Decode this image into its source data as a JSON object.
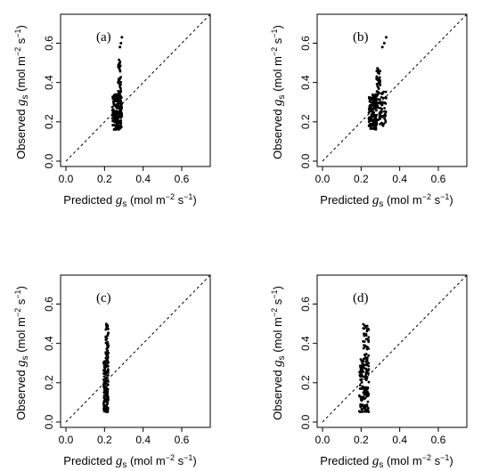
{
  "figure": {
    "xlabel": {
      "prefix": "Predicted ",
      "var": "g",
      "var_sub": "s",
      "unit_open": " (mol m",
      "sup1": "−2",
      "mid": " s",
      "sup2": "−1",
      "unit_close": ")"
    },
    "ylabel": {
      "prefix": "Observed ",
      "var": "g",
      "var_sub": "s",
      "unit_open": " (mol m",
      "sup1": "−2",
      "mid": " s",
      "sup2": "−1",
      "unit_close": ")"
    },
    "xticks": [
      "0.0",
      "0.2",
      "0.4",
      "0.6"
    ],
    "yticks": [
      "0.0",
      "0.2",
      "0.4",
      "0.6"
    ]
  },
  "chart_data": [
    {
      "type": "scatter",
      "panel_label": "(a)",
      "xlim": [
        0,
        0.72
      ],
      "ylim": [
        0,
        0.72
      ],
      "reference_line": "1:1 dashed",
      "clusters": [
        {
          "x_range": [
            0.24,
            0.27
          ],
          "y_range": [
            0.16,
            0.34
          ],
          "count": 110
        },
        {
          "x_range": [
            0.265,
            0.29
          ],
          "y_range": [
            0.16,
            0.33
          ],
          "count": 110
        },
        {
          "x_range": [
            0.27,
            0.285
          ],
          "y_range": [
            0.33,
            0.52
          ],
          "count": 40
        }
      ],
      "points": [
        [
          0.285,
          0.6
        ],
        [
          0.29,
          0.63
        ],
        [
          0.28,
          0.58
        ]
      ]
    },
    {
      "type": "scatter",
      "panel_label": "(b)",
      "xlim": [
        0,
        0.72
      ],
      "ylim": [
        0,
        0.72
      ],
      "reference_line": "1:1 dashed",
      "clusters": [
        {
          "x_range": [
            0.24,
            0.28
          ],
          "y_range": [
            0.16,
            0.34
          ],
          "count": 130
        },
        {
          "x_range": [
            0.27,
            0.33
          ],
          "y_range": [
            0.18,
            0.36
          ],
          "count": 90
        },
        {
          "x_range": [
            0.28,
            0.3
          ],
          "y_range": [
            0.34,
            0.48
          ],
          "count": 35
        }
      ],
      "points": [
        [
          0.32,
          0.6
        ],
        [
          0.33,
          0.63
        ],
        [
          0.31,
          0.58
        ]
      ]
    },
    {
      "type": "scatter",
      "panel_label": "(c)",
      "xlim": [
        0,
        0.72
      ],
      "ylim": [
        0,
        0.72
      ],
      "reference_line": "1:1 dashed",
      "clusters": [
        {
          "x_range": [
            0.195,
            0.22
          ],
          "y_range": [
            0.05,
            0.32
          ],
          "count": 130
        },
        {
          "x_range": [
            0.205,
            0.22
          ],
          "y_range": [
            0.32,
            0.5
          ],
          "count": 45
        }
      ],
      "points": []
    },
    {
      "type": "scatter",
      "panel_label": "(d)",
      "xlim": [
        0,
        0.72
      ],
      "ylim": [
        0,
        0.72
      ],
      "reference_line": "1:1 dashed",
      "clusters": [
        {
          "x_range": [
            0.19,
            0.24
          ],
          "y_range": [
            0.05,
            0.32
          ],
          "count": 140
        },
        {
          "x_range": [
            0.21,
            0.24
          ],
          "y_range": [
            0.32,
            0.5
          ],
          "count": 45
        }
      ],
      "points": []
    }
  ]
}
